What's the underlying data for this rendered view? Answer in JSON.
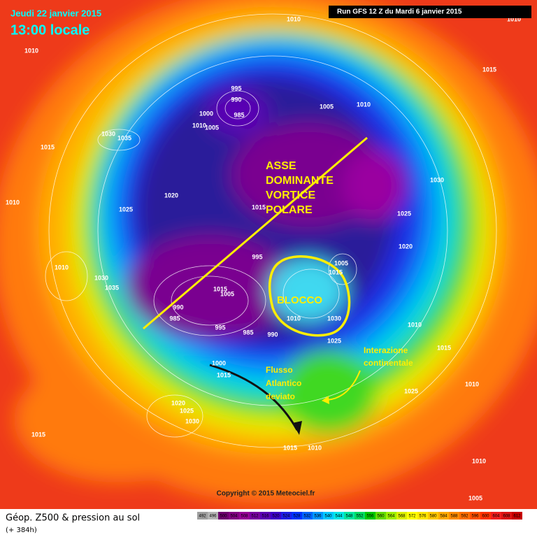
{
  "header": {
    "date": "Jeudi 22 janvier 2015",
    "time": "13:00 locale",
    "run": "Run GFS 12 Z du Mardi 6 janvier 2015"
  },
  "annotations": {
    "axis": [
      "ASSE",
      "DOMINANTE",
      "VORTICE",
      "POLARE"
    ],
    "block": "BLOCCO",
    "continental": [
      "Interazione",
      "continentale"
    ],
    "atlantic": [
      "Flusso",
      "Atlantico",
      "deviato"
    ]
  },
  "pressure_labels": [
    1010,
    1010,
    1010,
    1015,
    995,
    990,
    985,
    1000,
    1010,
    1005,
    1005,
    1010,
    1030,
    1035,
    1015,
    1020,
    1025,
    1010,
    1015,
    1030,
    1025,
    1020,
    995,
    1005,
    1015,
    1010,
    1030,
    1035,
    1015,
    1005,
    990,
    985,
    995,
    985,
    990,
    1010,
    1030,
    1025,
    1010,
    1015,
    1000,
    1015,
    1010,
    1025,
    1020,
    1025,
    1030,
    1015,
    1015,
    1010,
    1010,
    1005
  ],
  "copyright": "Copyright © 2015 Meteociel.fr",
  "footer": {
    "title": "Géop. Z500 & pression au sol",
    "lead": "(+ 384h)"
  },
  "scale": {
    "levels": [
      492,
      496,
      500,
      504,
      508,
      512,
      516,
      520,
      524,
      528,
      532,
      536,
      540,
      544,
      548,
      552,
      556,
      560,
      564,
      568,
      572,
      576,
      580,
      584,
      588,
      592,
      596,
      600,
      604,
      608,
      612
    ],
    "colors": [
      "#9e9e9e",
      "#b4b4b4",
      "#6e006e",
      "#820082",
      "#960096",
      "#7800a0",
      "#5a00b4",
      "#3c00c8",
      "#1e1ee6",
      "#0032ff",
      "#0064ff",
      "#0096ff",
      "#00c8ff",
      "#00e6e6",
      "#00e6a0",
      "#00dc64",
      "#00c800",
      "#64dc00",
      "#a0f000",
      "#dcf000",
      "#ffff00",
      "#ffe600",
      "#ffc800",
      "#ffaa00",
      "#ff8c00",
      "#ff6e00",
      "#ff5000",
      "#ff3200",
      "#f01e1e",
      "#dc1414",
      "#c80000"
    ]
  }
}
